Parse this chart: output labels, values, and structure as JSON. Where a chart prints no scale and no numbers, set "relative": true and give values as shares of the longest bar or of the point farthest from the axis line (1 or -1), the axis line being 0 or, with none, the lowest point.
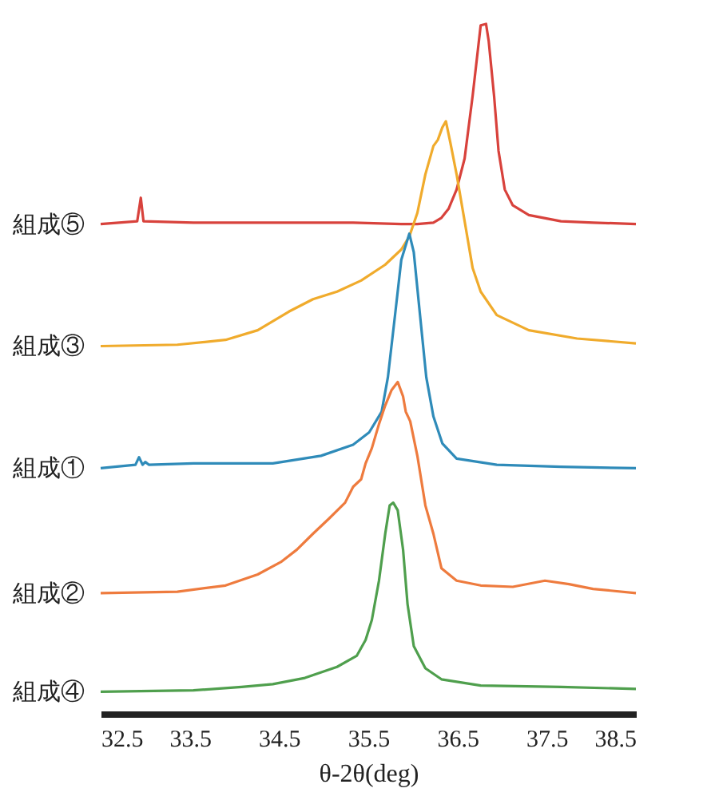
{
  "chart_data": {
    "type": "line",
    "relative": true,
    "xlabel": "θ-2θ(deg)",
    "legend": false,
    "grid": false,
    "marker": "none",
    "xlim": [
      32.5,
      38.5
    ],
    "xticks": [
      32.5,
      33.5,
      34.5,
      35.5,
      36.5,
      37.5,
      38.5
    ],
    "series": [
      {
        "name": "組成⑤",
        "color": "#d8423c",
        "x": [
          32.5,
          32.91,
          32.95,
          32.98,
          33.54,
          34.43,
          35.33,
          35.87,
          36.05,
          36.23,
          36.32,
          36.4,
          36.49,
          36.58,
          36.67,
          36.73,
          36.76,
          36.82,
          36.85,
          36.91,
          36.96,
          37.03,
          37.12,
          37.3,
          37.66,
          38.02,
          38.5
        ],
        "values": [
          0.71,
          0.714,
          0.748,
          0.714,
          0.712,
          0.712,
          0.712,
          0.71,
          0.71,
          0.712,
          0.719,
          0.732,
          0.76,
          0.805,
          0.896,
          0.964,
          0.998,
          1,
          0.975,
          0.896,
          0.816,
          0.76,
          0.737,
          0.723,
          0.714,
          0.712,
          0.71
        ]
      },
      {
        "name": "組成③",
        "color": "#f0ab2c",
        "x": [
          32.5,
          33.36,
          33.9,
          34.26,
          34.61,
          34.88,
          35.15,
          35.42,
          35.69,
          35.87,
          35.96,
          36.05,
          36.14,
          36.23,
          36.28,
          36.33,
          36.37,
          36.42,
          36.49,
          36.58,
          36.67,
          36.76,
          36.94,
          37.3,
          37.84,
          38.5
        ],
        "values": [
          0.533,
          0.535,
          0.542,
          0.556,
          0.583,
          0.601,
          0.612,
          0.628,
          0.651,
          0.673,
          0.692,
          0.726,
          0.782,
          0.823,
          0.832,
          0.85,
          0.859,
          0.828,
          0.782,
          0.714,
          0.646,
          0.612,
          0.578,
          0.556,
          0.544,
          0.537
        ]
      },
      {
        "name": "組成①",
        "color": "#2f8bb9",
        "x": [
          32.5,
          32.89,
          32.93,
          32.97,
          33.0,
          33.04,
          33.54,
          34.43,
          34.97,
          35.33,
          35.51,
          35.65,
          35.72,
          35.8,
          35.87,
          35.96,
          36.01,
          36.08,
          36.15,
          36.23,
          36.33,
          36.49,
          36.94,
          37.66,
          38.5
        ],
        "values": [
          0.356,
          0.361,
          0.372,
          0.361,
          0.365,
          0.361,
          0.363,
          0.363,
          0.374,
          0.39,
          0.408,
          0.438,
          0.488,
          0.578,
          0.658,
          0.696,
          0.669,
          0.578,
          0.488,
          0.431,
          0.392,
          0.37,
          0.361,
          0.358,
          0.356
        ]
      },
      {
        "name": "組成②",
        "color": "#ee7b3e",
        "x": [
          32.5,
          33.36,
          33.9,
          34.26,
          34.52,
          34.7,
          34.88,
          35.06,
          35.24,
          35.33,
          35.42,
          35.47,
          35.54,
          35.62,
          35.69,
          35.76,
          35.83,
          35.89,
          35.92,
          35.97,
          36.05,
          36.14,
          36.23,
          36.32,
          36.49,
          36.76,
          37.12,
          37.48,
          37.75,
          38.02,
          38.5
        ],
        "values": [
          0.175,
          0.177,
          0.186,
          0.202,
          0.22,
          0.238,
          0.261,
          0.283,
          0.306,
          0.329,
          0.34,
          0.363,
          0.385,
          0.42,
          0.447,
          0.469,
          0.481,
          0.46,
          0.438,
          0.424,
          0.374,
          0.302,
          0.261,
          0.211,
          0.193,
          0.186,
          0.184,
          0.193,
          0.188,
          0.181,
          0.175
        ]
      },
      {
        "name": "組成④",
        "color": "#4f9f4d",
        "x": [
          32.5,
          33.54,
          34.08,
          34.43,
          34.79,
          35.15,
          35.37,
          35.47,
          35.54,
          35.62,
          35.69,
          35.74,
          35.78,
          35.83,
          35.89,
          35.94,
          36.01,
          36.14,
          36.32,
          36.76,
          37.66,
          38.5
        ],
        "values": [
          0.032,
          0.034,
          0.039,
          0.043,
          0.052,
          0.068,
          0.084,
          0.107,
          0.136,
          0.193,
          0.261,
          0.302,
          0.306,
          0.295,
          0.238,
          0.159,
          0.098,
          0.066,
          0.05,
          0.041,
          0.039,
          0.036
        ]
      }
    ]
  }
}
